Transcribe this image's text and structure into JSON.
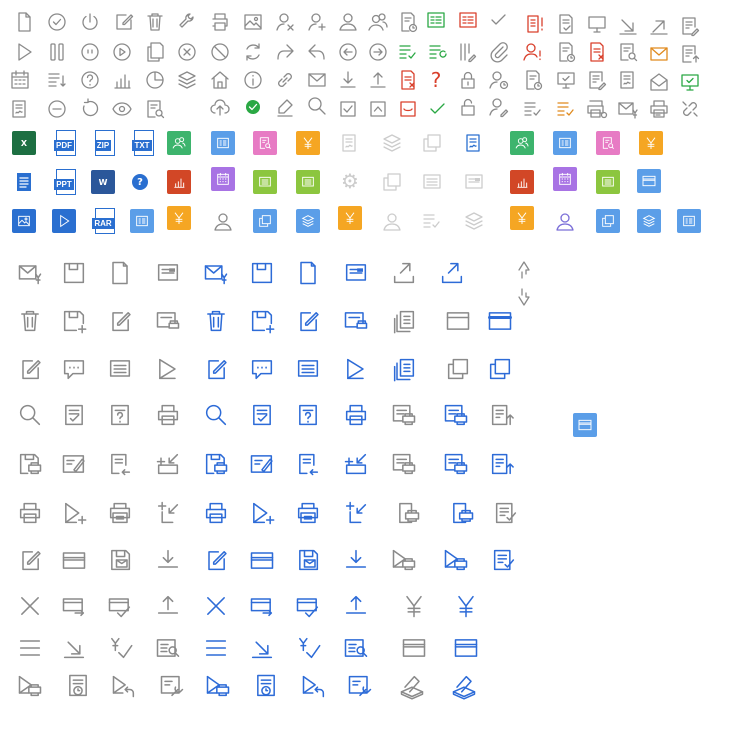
{
  "colors": {
    "gray": "#8a8a8a",
    "blue": "#2d6bd7",
    "green": "#2aa844",
    "red": "#d9402c",
    "orange": "#e08a1e",
    "tile_blue": "#5b9ee8",
    "tile_green": "#3db46d",
    "tile_pink": "#e77bc4",
    "tile_orange": "#f5a623",
    "tile_purple": "#a873e4",
    "tile_lime": "#8cc63f",
    "excel": "#1d6f42",
    "word": "#2b579a",
    "ppt": "#d24726",
    "doc_blue": "#2a6fd0",
    "light": "#cccccc"
  },
  "file_badges": {
    "pdf": "PDF",
    "zip": "ZIP",
    "txt": "TXT",
    "ppt": "PPT",
    "rar": "RAR",
    "excel": "X",
    "word": "W"
  },
  "glyphs": {
    "yen": "¥",
    "question": "?",
    "check": "✓",
    "x": "✕",
    "gear": "⚙"
  },
  "icons": [
    "file-icon",
    "check-circle-icon",
    "power-icon",
    "edit-icon",
    "trash-icon",
    "wrench-icon",
    "printer-icon",
    "image-icon",
    "user-remove-icon",
    "user-add-icon",
    "user-icon",
    "users-icon",
    "schedule-doc-icon",
    "form-green-icon",
    "form-red-icon",
    "check-icon",
    "doc-alert-icon",
    "doc-check-icon",
    "monitor-refresh-icon",
    "arrow-down-right-icon",
    "arrow-up-right-icon",
    "doc-edit-icon",
    "play-icon",
    "pause-icon",
    "dots-circle-icon",
    "play-circle-icon",
    "copy-icon",
    "close-circle-icon",
    "ban-icon",
    "refresh-icon",
    "forward-icon",
    "reply-icon",
    "arrow-left-circle-icon",
    "arrow-right-circle-icon",
    "list-check-icon",
    "list-refresh-icon",
    "columns-edit-icon",
    "attachment-icon",
    "user-alert-icon",
    "doc-schedule-icon",
    "doc-remove-icon",
    "search-doc-icon",
    "mail-orange-icon",
    "doc-upload-icon",
    "calendar-icon",
    "list-sort-icon",
    "help-icon",
    "bar-chart-icon",
    "pie-chart-icon",
    "layers-icon",
    "home-icon",
    "info-icon",
    "link-icon",
    "mail-icon",
    "download-icon",
    "upload-icon",
    "doc-error-icon",
    "question-red-icon",
    "lock-icon",
    "user-clock-icon",
    "doc-clock-icon",
    "monitor-check-icon",
    "doc-sign-icon",
    "mail-open-icon",
    "monitor-green-icon",
    "list-doc-icon",
    "minus-circle-icon",
    "rotate-icon",
    "eye-icon",
    "doc-search-icon",
    "cloud-upload-icon",
    "check-circle-green-icon",
    "pen-icon",
    "search-icon",
    "checkbox-icon",
    "caret-box-icon",
    "smile-box-icon",
    "check-green-icon",
    "unlock-icon",
    "user-edit-icon",
    "list-checked-icon",
    "list-check-orange-icon",
    "print-preview-icon",
    "mail-yen-icon",
    "print-doc-icon",
    "unlink-icon"
  ]
}
